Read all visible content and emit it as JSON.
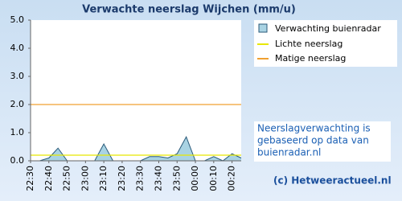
{
  "chart_data": {
    "type": "area",
    "title": "Verwachte neerslag Wijchen (mm/u)",
    "categories": [
      "22:30",
      null,
      "22:40",
      null,
      "22:50",
      null,
      "23:00",
      null,
      "23:10",
      null,
      "23:20",
      null,
      "23:30",
      null,
      "23:40",
      null,
      "23:50",
      null,
      "00:00",
      null,
      "00:10",
      null,
      "00:20",
      null
    ],
    "series": [
      {
        "name": "Verwachting buienradar",
        "color": "#a9d3e3",
        "values": [
          0,
          0,
          0.1,
          0.45,
          0,
          0,
          0,
          0,
          0.6,
          0,
          0,
          0,
          0,
          0.15,
          0.15,
          0.1,
          0.25,
          0.85,
          0,
          0,
          0.15,
          0,
          0.25,
          0.1
        ]
      }
    ],
    "thresholds": [
      {
        "name": "Lichte neerslag",
        "color": "#e8e800",
        "value": 0.2
      },
      {
        "name": "Matige neerslag",
        "color": "#f0a030",
        "value": 2.0
      }
    ],
    "ylim": [
      0,
      5
    ],
    "yticks": [
      {
        "value": 0,
        "label": "0.0"
      },
      {
        "value": 1,
        "label": "1.0"
      },
      {
        "value": 2,
        "label": "2.0"
      },
      {
        "value": 3,
        "label": "3.0"
      },
      {
        "value": 4,
        "label": "4.0"
      },
      {
        "value": 5,
        "label": "5.0"
      }
    ],
    "note": [
      "Neerslagverwachting is",
      "gebaseerd op data van",
      "buienradar.nl"
    ],
    "credit": "(c) Hetweeractueel.nl"
  }
}
